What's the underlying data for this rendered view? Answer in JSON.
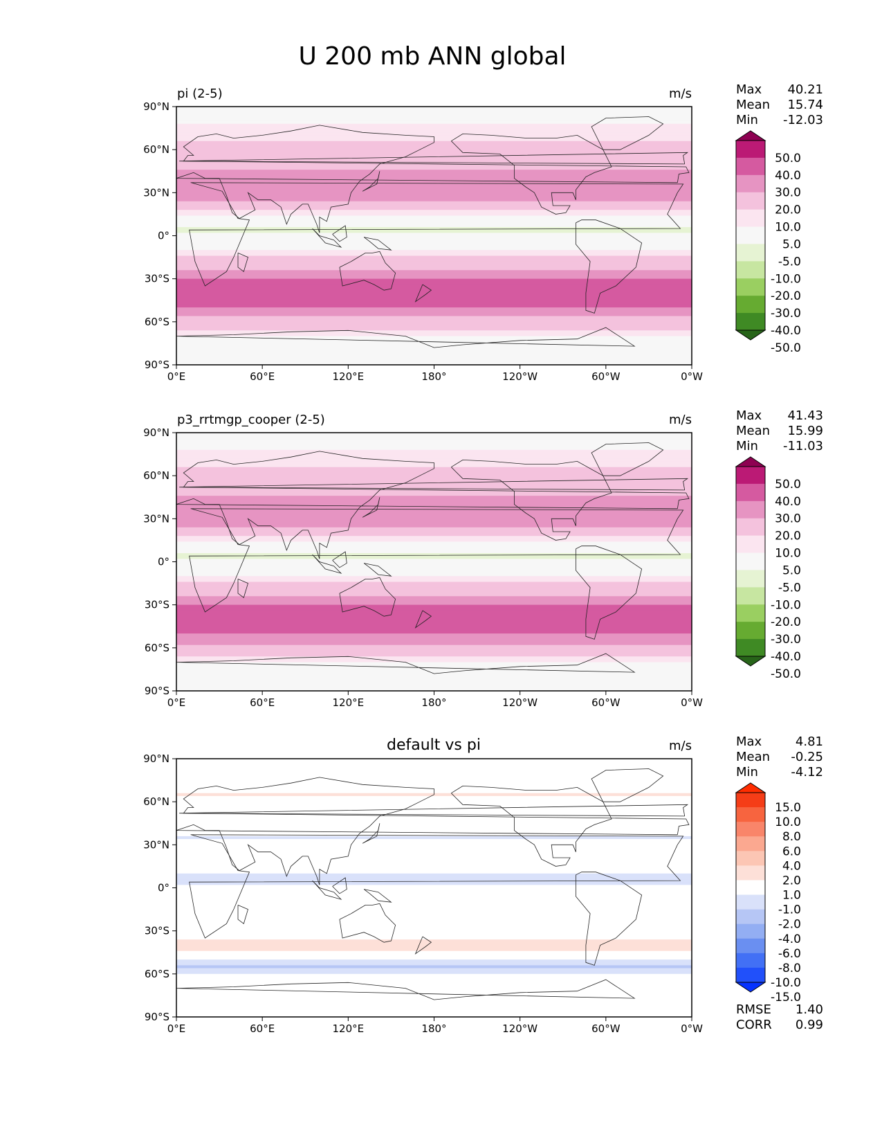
{
  "figure": {
    "title": "U 200 mb ANN global"
  },
  "axes": {
    "lat_labels": [
      "90°N",
      "60°N",
      "30°N",
      "0°",
      "30°S",
      "60°S",
      "90°S"
    ],
    "lon_labels": [
      "0°E",
      "60°E",
      "120°E",
      "180°",
      "120°W",
      "60°W",
      "0°W"
    ]
  },
  "panels": [
    {
      "title": "pi (2-5)",
      "title_align": "left",
      "units": "m/s",
      "stats": [
        {
          "label": "Max",
          "value": "40.21"
        },
        {
          "label": "Mean",
          "value": "15.74"
        },
        {
          "label": "Min",
          "value": "-12.03"
        }
      ],
      "colorbar": "pig",
      "lat_profile": [
        [
          90,
          2
        ],
        [
          80,
          4
        ],
        [
          70,
          8
        ],
        [
          60,
          12
        ],
        [
          50,
          18
        ],
        [
          40,
          24
        ],
        [
          35,
          28
        ],
        [
          30,
          26
        ],
        [
          25,
          20
        ],
        [
          20,
          14
        ],
        [
          15,
          6
        ],
        [
          10,
          -2
        ],
        [
          5,
          -6
        ],
        [
          0,
          -4
        ],
        [
          -5,
          -2
        ],
        [
          -10,
          4
        ],
        [
          -15,
          10
        ],
        [
          -20,
          16
        ],
        [
          -25,
          22
        ],
        [
          -30,
          30
        ],
        [
          -35,
          35
        ],
        [
          -40,
          38
        ],
        [
          -45,
          36
        ],
        [
          -50,
          30
        ],
        [
          -55,
          22
        ],
        [
          -60,
          16
        ],
        [
          -65,
          10
        ],
        [
          -70,
          5
        ],
        [
          -80,
          3
        ],
        [
          -90,
          2
        ]
      ]
    },
    {
      "title": "p3_rrtmgp_cooper (2-5)",
      "title_align": "left",
      "units": "m/s",
      "stats": [
        {
          "label": "Max",
          "value": "41.43"
        },
        {
          "label": "Mean",
          "value": "15.99"
        },
        {
          "label": "Min",
          "value": "-11.03"
        }
      ],
      "colorbar": "pig",
      "lat_profile": [
        [
          90,
          2
        ],
        [
          80,
          4
        ],
        [
          70,
          8
        ],
        [
          60,
          12
        ],
        [
          50,
          18
        ],
        [
          40,
          24
        ],
        [
          35,
          28
        ],
        [
          30,
          26
        ],
        [
          25,
          20
        ],
        [
          20,
          14
        ],
        [
          15,
          6
        ],
        [
          10,
          -2
        ],
        [
          5,
          -6
        ],
        [
          0,
          -4
        ],
        [
          -5,
          -2
        ],
        [
          -10,
          4
        ],
        [
          -15,
          10
        ],
        [
          -20,
          16
        ],
        [
          -25,
          22
        ],
        [
          -30,
          30
        ],
        [
          -35,
          35
        ],
        [
          -40,
          38
        ],
        [
          -45,
          37
        ],
        [
          -50,
          31
        ],
        [
          -55,
          23
        ],
        [
          -60,
          16
        ],
        [
          -65,
          10
        ],
        [
          -70,
          5
        ],
        [
          -80,
          3
        ],
        [
          -90,
          2
        ]
      ]
    },
    {
      "title": "default vs pi",
      "title_align": "center",
      "units": "m/s",
      "stats": [
        {
          "label": "Max",
          "value": "4.81"
        },
        {
          "label": "Mean",
          "value": "-0.25"
        },
        {
          "label": "Min",
          "value": "-4.12"
        }
      ],
      "extra_stats": [
        {
          "label": "RMSE",
          "value": "1.40"
        },
        {
          "label": "CORR",
          "value": "0.99"
        }
      ],
      "colorbar": "diff",
      "lat_profile": [
        [
          90,
          0
        ],
        [
          75,
          -0.8
        ],
        [
          65,
          1.2
        ],
        [
          55,
          -0.5
        ],
        [
          45,
          0.9
        ],
        [
          35,
          -1.2
        ],
        [
          25,
          0.6
        ],
        [
          15,
          -0.4
        ],
        [
          5,
          -1.5
        ],
        [
          0,
          -0.6
        ],
        [
          -10,
          -1.0
        ],
        [
          -20,
          -0.4
        ],
        [
          -30,
          0.4
        ],
        [
          -40,
          1.5
        ],
        [
          -45,
          0.8
        ],
        [
          -50,
          -0.9
        ],
        [
          -55,
          -2.2
        ],
        [
          -60,
          -1.0
        ],
        [
          -70,
          0
        ],
        [
          -80,
          0.4
        ],
        [
          -90,
          0
        ]
      ]
    }
  ],
  "colorbars": {
    "pig": {
      "labels": [
        "50.0",
        "40.0",
        "30.0",
        "20.0",
        "10.0",
        "5.0",
        "-5.0",
        "-10.0",
        "-20.0",
        "-30.0",
        "-40.0",
        "-50.0"
      ],
      "levels": [
        -50,
        -40,
        -30,
        -20,
        -10,
        -5,
        5,
        10,
        20,
        30,
        40,
        50
      ],
      "colors": [
        "#276419",
        "#3f8a24",
        "#66ab31",
        "#9acf61",
        "#c7e6a1",
        "#e6f3d3",
        "#f7f7f7",
        "#fbe5f0",
        "#f4c2dd",
        "#e694c2",
        "#d55aa0",
        "#bb1a75",
        "#8e0152"
      ]
    },
    "diff": {
      "labels": [
        "15.0",
        "10.0",
        "8.0",
        "6.0",
        "4.0",
        "2.0",
        "1.0",
        "-1.0",
        "-2.0",
        "-4.0",
        "-6.0",
        "-8.0",
        "-10.0",
        "-15.0"
      ],
      "levels": [
        -15,
        -10,
        -8,
        -6,
        -4,
        -2,
        -1,
        1,
        2,
        4,
        6,
        8,
        10,
        15
      ],
      "colors": [
        "#0532ff",
        "#2150fa",
        "#4270f5",
        "#6a8ff1",
        "#93aef3",
        "#b6c6f5",
        "#d9e1fa",
        "#ffffff",
        "#fde0d8",
        "#fcc6b4",
        "#fba890",
        "#f9856a",
        "#f7643f",
        "#f53d17",
        "#ff2d00"
      ]
    }
  }
}
